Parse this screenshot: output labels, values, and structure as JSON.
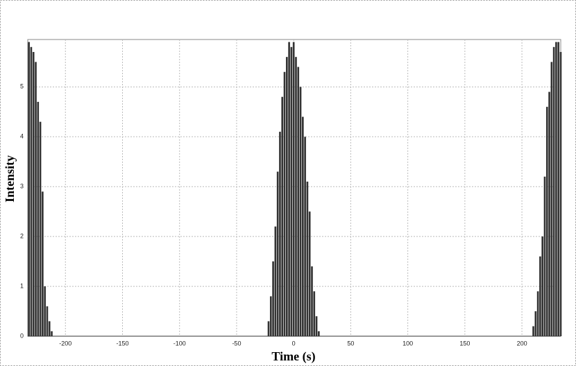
{
  "chart_data": {
    "type": "bar",
    "x_label": "Time (s)",
    "y_label": "Intensity",
    "color": "#333333",
    "x": [
      -232,
      -230,
      -228,
      -226,
      -224,
      -222,
      -220,
      -218,
      -216,
      -214,
      -212,
      -22,
      -20,
      -18,
      -16,
      -14,
      -12,
      -10,
      -8,
      -6,
      -4,
      -2,
      0,
      2,
      4,
      6,
      8,
      10,
      12,
      14,
      16,
      18,
      20,
      22,
      210,
      212,
      214,
      216,
      218,
      220,
      222,
      224,
      226,
      228,
      230,
      232,
      234
    ],
    "values": [
      5.9,
      5.8,
      5.7,
      5.5,
      4.7,
      4.3,
      2.9,
      1.0,
      0.6,
      0.3,
      0.1,
      0.3,
      0.8,
      1.5,
      2.2,
      3.3,
      4.1,
      4.8,
      5.3,
      5.6,
      5.9,
      5.8,
      5.9,
      5.6,
      5.4,
      5.0,
      4.4,
      4.0,
      3.1,
      2.5,
      1.4,
      0.9,
      0.4,
      0.1,
      0.2,
      0.5,
      0.9,
      1.6,
      2.0,
      3.2,
      4.6,
      4.9,
      5.5,
      5.8,
      5.9,
      5.9,
      5.7
    ],
    "xlim": [
      -233,
      234
    ],
    "ylim": [
      0,
      5.95
    ],
    "xticks": [
      -200,
      -150,
      -100,
      -50,
      0,
      50,
      100,
      150,
      200
    ],
    "yticks": [
      0,
      1,
      2,
      3,
      4,
      5
    ],
    "grid": true
  }
}
